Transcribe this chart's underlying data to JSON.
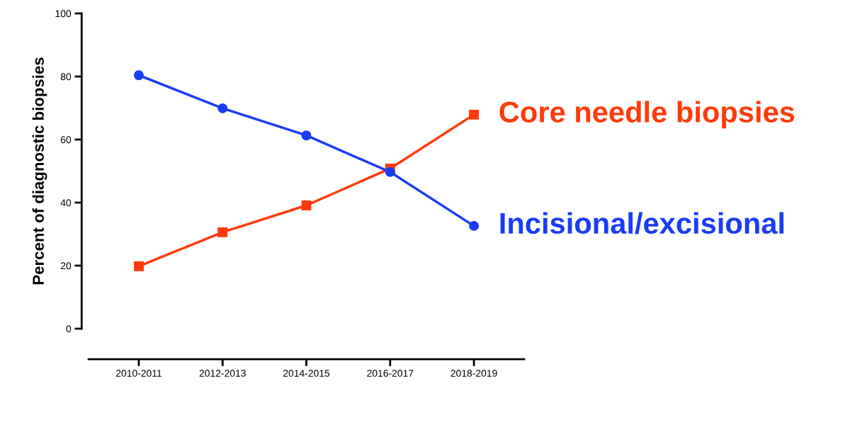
{
  "chart_data": {
    "type": "line",
    "ylabel": "Percent of diagnostic biopsies",
    "categories": [
      "2010-2011",
      "2012-2013",
      "2014-2015",
      "2016-2017",
      "2018-2019"
    ],
    "series": [
      {
        "name": "Incisional/excisional",
        "color": "#1a3cf5",
        "marker": "circle",
        "values": [
          80.4,
          69.9,
          61.3,
          49.7,
          32.6
        ]
      },
      {
        "name": "Core needle biopsies",
        "color": "#ff3a0a",
        "marker": "square",
        "values": [
          19.8,
          30.6,
          39.1,
          50.8,
          67.9
        ]
      }
    ],
    "ylim": [
      0,
      100
    ],
    "yticks": [
      0,
      20,
      40,
      60,
      80,
      100
    ],
    "grid": false,
    "legend": false,
    "line_style": "solid"
  }
}
